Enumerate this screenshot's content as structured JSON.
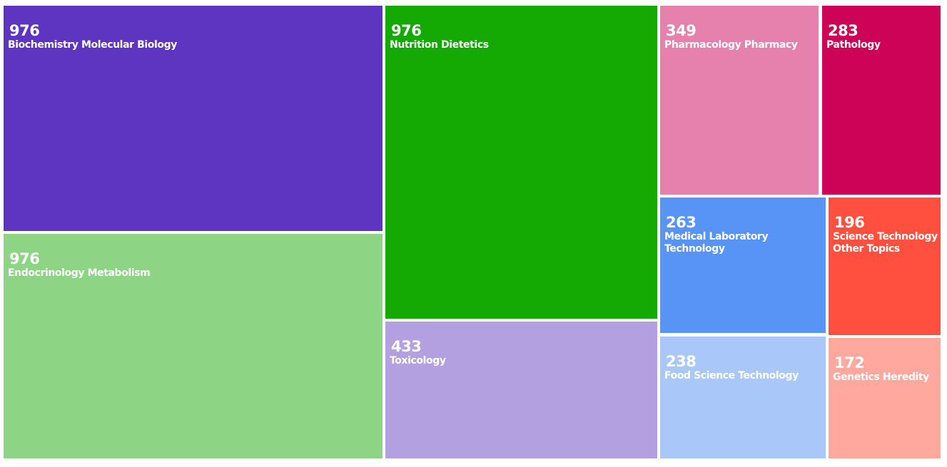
{
  "chart_data": {
    "type": "treemap",
    "categories": [
      "Biochemistry Molecular Biology",
      "Endocrinology Metabolism",
      "Nutrition Dietetics",
      "Toxicology",
      "Pharmacology Pharmacy",
      "Pathology",
      "Medical Laboratory Technology",
      "Science Technology Other Topics",
      "Food Science Technology",
      "Genetics Heredity"
    ],
    "values": [
      976,
      976,
      976,
      433,
      349,
      283,
      263,
      196,
      238,
      172
    ],
    "value_labels": [
      "976",
      "976",
      "976",
      "433",
      "349",
      "283",
      "263",
      "196",
      "238",
      "172"
    ],
    "colors": [
      "#5d35c0",
      "#8dd584",
      "#14aa03",
      "#b3a0e0",
      "#e680ac",
      "#cc0356",
      "#5894f5",
      "#ff503f",
      "#a9c8f9",
      "#ffa89e"
    ]
  }
}
